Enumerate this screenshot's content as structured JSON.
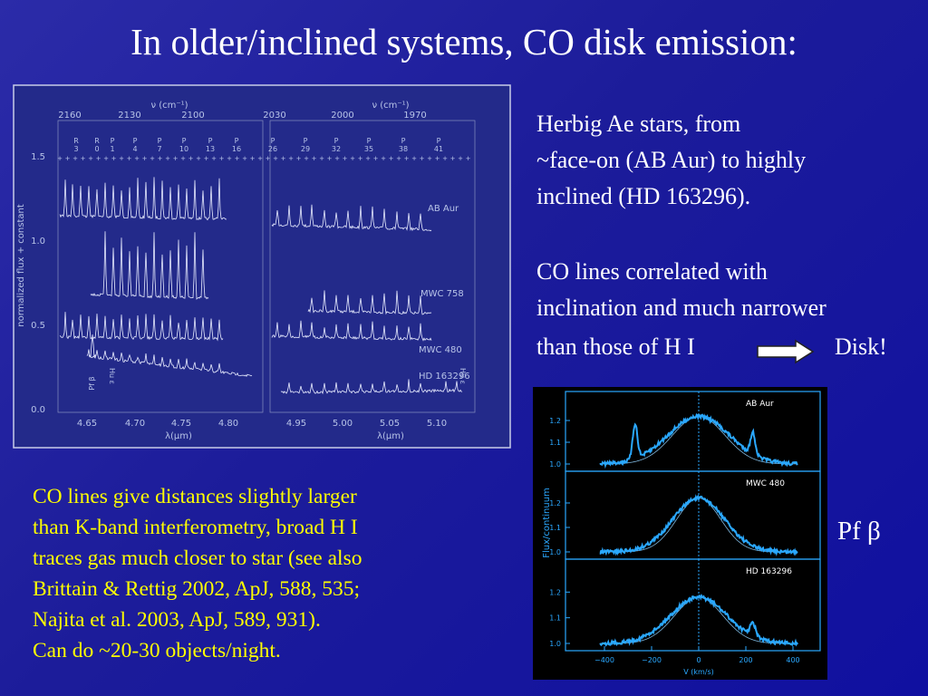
{
  "title": "In older/inclined systems, CO disk emission:",
  "right_text": [
    "Herbig Ae stars,  from",
    "~face-on (AB Aur) to highly",
    "inclined (HD 163296).",
    "CO lines correlated with",
    "inclination and much narrower",
    "than those of H I",
    "Disk!"
  ],
  "bottom_text": [
    "CO lines give distances slightly larger",
    "than K-band interferometry, broad H I",
    "traces gas much closer to star (see also",
    "Brittain & Rettig 2002, ApJ, 588, 535;",
    "Najita et al. 2003, ApJ, 589, 931).",
    "Can do ~20-30 objects/night."
  ],
  "side_label": "Pf β",
  "figure1": {
    "top_axis_label": "ν (cm⁻¹)",
    "top_ticks": [
      "2160",
      "2130",
      "2100",
      "2030",
      "2000",
      "1970"
    ],
    "line_labels": [
      [
        "R",
        "3"
      ],
      [
        "R",
        "0"
      ],
      [
        "P",
        "1"
      ],
      [
        "P",
        "4"
      ],
      [
        "P",
        "7"
      ],
      [
        "P",
        "10"
      ],
      [
        "P",
        "13"
      ],
      [
        "P",
        "16"
      ],
      [
        "P",
        "26"
      ],
      [
        "P",
        "29"
      ],
      [
        "P",
        "32"
      ],
      [
        "P",
        "35"
      ],
      [
        "P",
        "38"
      ],
      [
        "P",
        "41"
      ]
    ],
    "y_label": "normalized flux + constant",
    "y_ticks": [
      "1.5",
      "1.0",
      "0.5",
      "0.0"
    ],
    "x_ticks": [
      "4.65",
      "4.70",
      "4.75",
      "4.80",
      "4.95",
      "5.00",
      "5.05",
      "5.10"
    ],
    "x_label": "λ(μm)",
    "spectrum_labels": [
      "AB Aur",
      "MWC 758",
      "MWC 480",
      "HD 163296"
    ],
    "feature_labels": [
      "Pf β",
      "Hu ε",
      "Hu ε"
    ]
  },
  "figure2": {
    "panel_labels": [
      "AB Aur",
      "MWC 480",
      "HD 163296"
    ],
    "y_ticks": [
      "1.2",
      "1.1",
      "1.0"
    ],
    "x_ticks": [
      "−400",
      "−200",
      "0",
      "200",
      "400"
    ],
    "x_label": "V (km/s)",
    "y_label": "Flux/continuum"
  }
}
